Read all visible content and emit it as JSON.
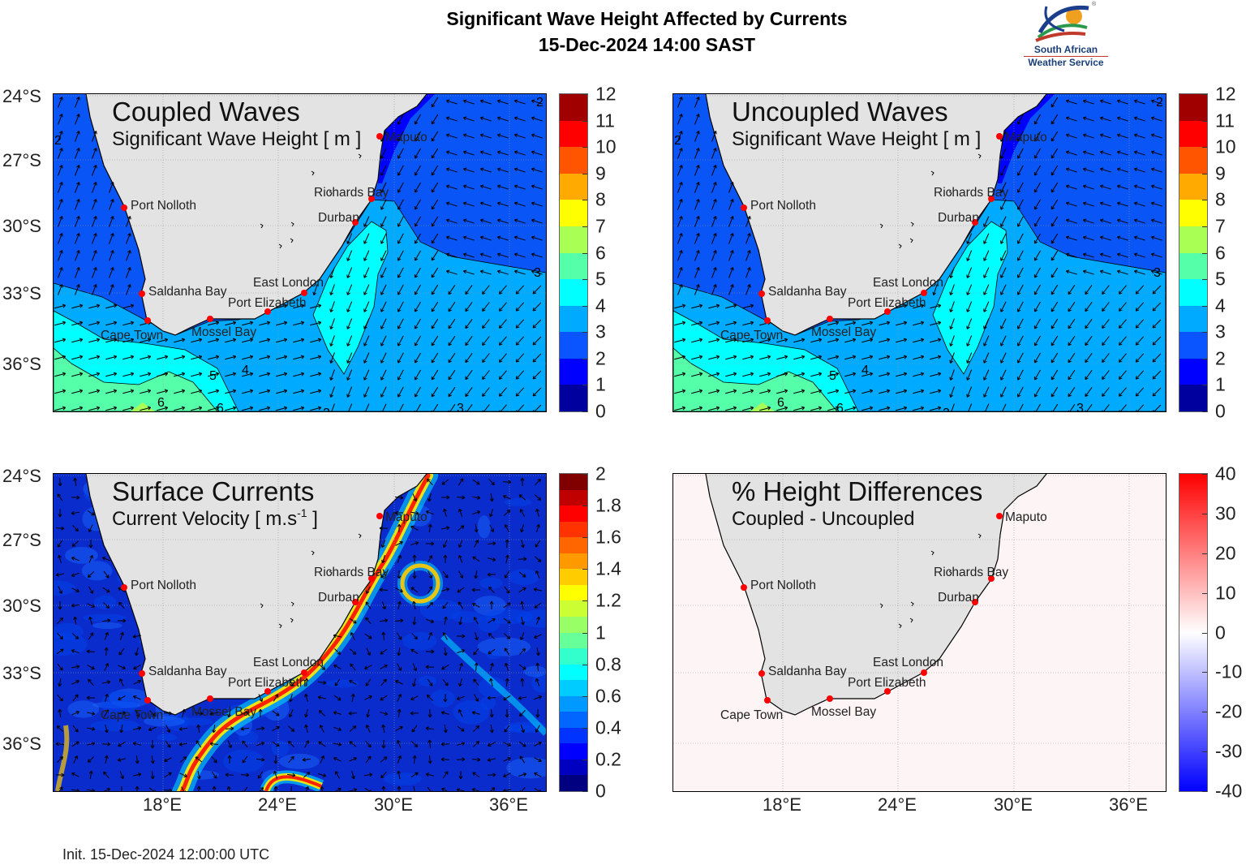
{
  "header": {
    "title": "Significant Wave Height Affected by Currents",
    "subtitle": "15-Dec-2024 14:00 SAST"
  },
  "logo": {
    "line1": "South African",
    "line2": "Weather Service",
    "registered": "®"
  },
  "axes": {
    "lat_ticks": [
      "24°S",
      "27°S",
      "30°S",
      "33°S",
      "36°S"
    ],
    "lon_ticks": [
      "18°E",
      "24°E",
      "30°E",
      "36°E"
    ]
  },
  "cities": [
    "Maputo",
    "Richards Bay",
    "Durban",
    "East London",
    "Port Elizabeth",
    "Mossel Bay",
    "Cape Town",
    "Saldanha Bay",
    "Port Nolloth"
  ],
  "panels": [
    {
      "title": "Coupled Waves",
      "subtitle": "Significant Wave Height [ m ]",
      "field": "waves",
      "contour_labels": [
        "2",
        "2",
        "3",
        "4",
        "5",
        "6",
        "6",
        "3",
        "3"
      ]
    },
    {
      "title": "Uncoupled Waves",
      "subtitle": "Significant Wave Height [ m ]",
      "field": "waves",
      "contour_labels": [
        "2",
        "2",
        "3",
        "4",
        "5",
        "6",
        "6",
        "3",
        "3"
      ]
    },
    {
      "title": "Surface Currents",
      "subtitle": "Current Velocity [ m.s",
      "subtitle_sup": "-1",
      "subtitle_end": " ]",
      "field": "currents"
    },
    {
      "title": "% Height Differences",
      "subtitle": "Coupled - Uncoupled",
      "field": "diff"
    }
  ],
  "colorbars": {
    "waves": {
      "ticks": [
        "12",
        "11",
        "10",
        "9",
        "8",
        "7",
        "6",
        "5",
        "4",
        "3",
        "2",
        "1",
        "0"
      ],
      "colors": [
        "#a00000",
        "#ff0000",
        "#ff5500",
        "#ffaa00",
        "#ffff00",
        "#aaff55",
        "#55ffaa",
        "#00ffff",
        "#00aaff",
        "#0a55ff",
        "#0000ff",
        "#00009f"
      ]
    },
    "currents": {
      "ticks": [
        "2",
        "1.8",
        "1.6",
        "1.4",
        "1.2",
        "1",
        "0.8",
        "0.6",
        "0.4",
        "0.2",
        "0"
      ],
      "colors": [
        "#800000",
        "#c00000",
        "#ff0000",
        "#ff3300",
        "#ff6600",
        "#ff9900",
        "#ffcc00",
        "#ffff00",
        "#ccff33",
        "#99ff66",
        "#66ff99",
        "#33ffcc",
        "#00ffff",
        "#00ccff",
        "#0099ff",
        "#0066ff",
        "#0033ff",
        "#0000ff",
        "#0000c0",
        "#000080"
      ]
    },
    "diff": {
      "ticks": [
        "40",
        "30",
        "20",
        "10",
        "0",
        "-10",
        "-20",
        "-30",
        "-40"
      ],
      "colors": [
        "#ff0000",
        "#ffffff",
        "#0000ff"
      ]
    }
  },
  "colors": {
    "land": "#e3e3e3",
    "wave_base": "#0a55f5",
    "current_base": "#0a2ccc",
    "diff_base": "#fdf5f5",
    "city_marker": "#ff0000"
  },
  "footer": {
    "init": "Init. 15-Dec-2024 12:00:00 UTC"
  }
}
